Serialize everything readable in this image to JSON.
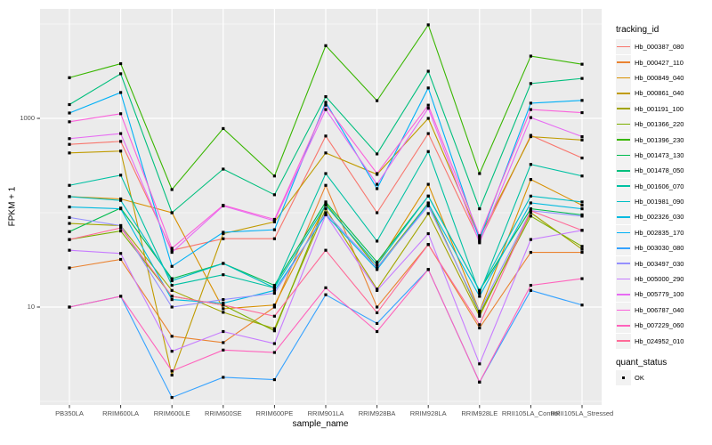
{
  "chart_data": {
    "type": "line",
    "title": "",
    "xlabel": "sample_name",
    "ylabel": "FPKM + 1",
    "y_scale": "log10",
    "ylim": [
      1,
      14000
    ],
    "legend_position": "right",
    "legend_title": "tracking_id",
    "point_legend": {
      "title": "quant_status",
      "items": [
        "OK"
      ],
      "marker_color": "#000000"
    },
    "panel_bg": "#EBEBEB",
    "grid_color": "#FFFFFF",
    "y_ticks": [
      {
        "value": 10,
        "label": "10"
      },
      {
        "value": 1000,
        "label": "1000"
      }
    ],
    "y_minor_ticks": [
      1,
      100,
      10000
    ],
    "x_categories": [
      "PB350LA",
      "RRIM600LA",
      "RRIM600LE",
      "RRIM600SE",
      "RRIM600PE",
      "RRIM901LA",
      "RRIM928BA",
      "RRIM928LA",
      "RRIM928LE",
      "RRII105LA_Control",
      "RRII105LA_Stressed"
    ],
    "series": [
      {
        "name": "Hb_000387_080",
        "color": "#F8766D",
        "values": [
          530,
          570,
          40,
          53,
          53,
          650,
          100,
          690,
          50,
          660,
          380
        ]
      },
      {
        "name": "Hb_000427_110",
        "color": "#EA8331",
        "values": [
          26,
          32,
          4.9,
          4.2,
          10,
          195,
          10,
          46,
          6,
          38,
          38
        ]
      },
      {
        "name": "Hb_000849_040",
        "color": "#D89000",
        "values": [
          148,
          140,
          100,
          9.6,
          10.5,
          120,
          28,
          200,
          9,
          225,
          120
        ]
      },
      {
        "name": "Hb_000861_040",
        "color": "#C09B00",
        "values": [
          430,
          450,
          1.9,
          60,
          80,
          430,
          255,
          1000,
          55,
          640,
          590
        ]
      },
      {
        "name": "Hb_001191_100",
        "color": "#A3A500",
        "values": [
          77,
          73,
          15,
          8.8,
          5.9,
          110,
          15.5,
          98,
          8,
          100,
          41
        ]
      },
      {
        "name": "Hb_001366_220",
        "color": "#7CAE00",
        "values": [
          52,
          64,
          13,
          10.5,
          5.6,
          125,
          26,
          127,
          8.5,
          92,
          44
        ]
      },
      {
        "name": "Hb_001396_230",
        "color": "#39B600",
        "values": [
          2700,
          3800,
          176,
          780,
          245,
          5900,
          1540,
          9800,
          260,
          4570,
          3750
        ]
      },
      {
        "name": "Hb_001473_130",
        "color": "#00BB4E",
        "values": [
          63,
          112,
          20,
          29,
          17,
          130,
          30,
          150,
          15,
          110,
          95
        ]
      },
      {
        "name": "Hb_001478_050",
        "color": "#00BF7D",
        "values": [
          1400,
          2970,
          100,
          290,
          155,
          1700,
          420,
          3160,
          110,
          2340,
          2650
        ]
      },
      {
        "name": "Hb_001606_070",
        "color": "#00C1A3",
        "values": [
          195,
          250,
          17,
          22,
          16,
          260,
          50,
          445,
          14,
          325,
          245
        ]
      },
      {
        "name": "Hb_001981_090",
        "color": "#00BFC4",
        "values": [
          148,
          135,
          19,
          29,
          16,
          120,
          28,
          150,
          15,
          150,
          130
        ]
      },
      {
        "name": "Hb_002326_030",
        "color": "#00BAE0",
        "values": [
          115,
          110,
          12,
          11,
          15,
          95,
          25,
          125,
          13,
          127,
          110
        ]
      },
      {
        "name": "Hb_002835_170",
        "color": "#00B0F6",
        "values": [
          1140,
          1880,
          27,
          62,
          66,
          1480,
          180,
          2100,
          52,
          1450,
          1550
        ]
      },
      {
        "name": "Hb_003030_080",
        "color": "#35A2FF",
        "values": [
          10,
          13,
          1.1,
          1.8,
          1.7,
          13.5,
          6.7,
          25,
          1.6,
          15,
          10.5
        ]
      },
      {
        "name": "Hb_003497_030",
        "color": "#9590FF",
        "values": [
          89,
          73,
          10,
          12,
          14,
          100,
          26,
          118,
          9,
          105,
          92
        ]
      },
      {
        "name": "Hb_005000_290",
        "color": "#C77CFF",
        "values": [
          40,
          37,
          3.4,
          5.5,
          4.1,
          95,
          15,
          60,
          2.5,
          52,
          65
        ]
      },
      {
        "name": "Hb_005779_100",
        "color": "#E76BF3",
        "values": [
          610,
          690,
          38,
          118,
          82,
          1240,
          200,
          1280,
          48,
          1020,
          640
        ]
      },
      {
        "name": "Hb_006787_040",
        "color": "#FA62DB",
        "values": [
          920,
          1120,
          42,
          120,
          85,
          1380,
          260,
          1380,
          57,
          1240,
          1150
        ]
      },
      {
        "name": "Hb_007229_060",
        "color": "#FF62BC",
        "values": [
          10,
          13,
          2.1,
          3.5,
          3.3,
          16,
          5.5,
          25,
          1.6,
          17,
          20
        ]
      },
      {
        "name": "Hb_024952_010",
        "color": "#FF6A98",
        "values": [
          52,
          69,
          13,
          10.5,
          8,
          40,
          8.7,
          46,
          6.5,
          105,
          65
        ]
      }
    ]
  }
}
